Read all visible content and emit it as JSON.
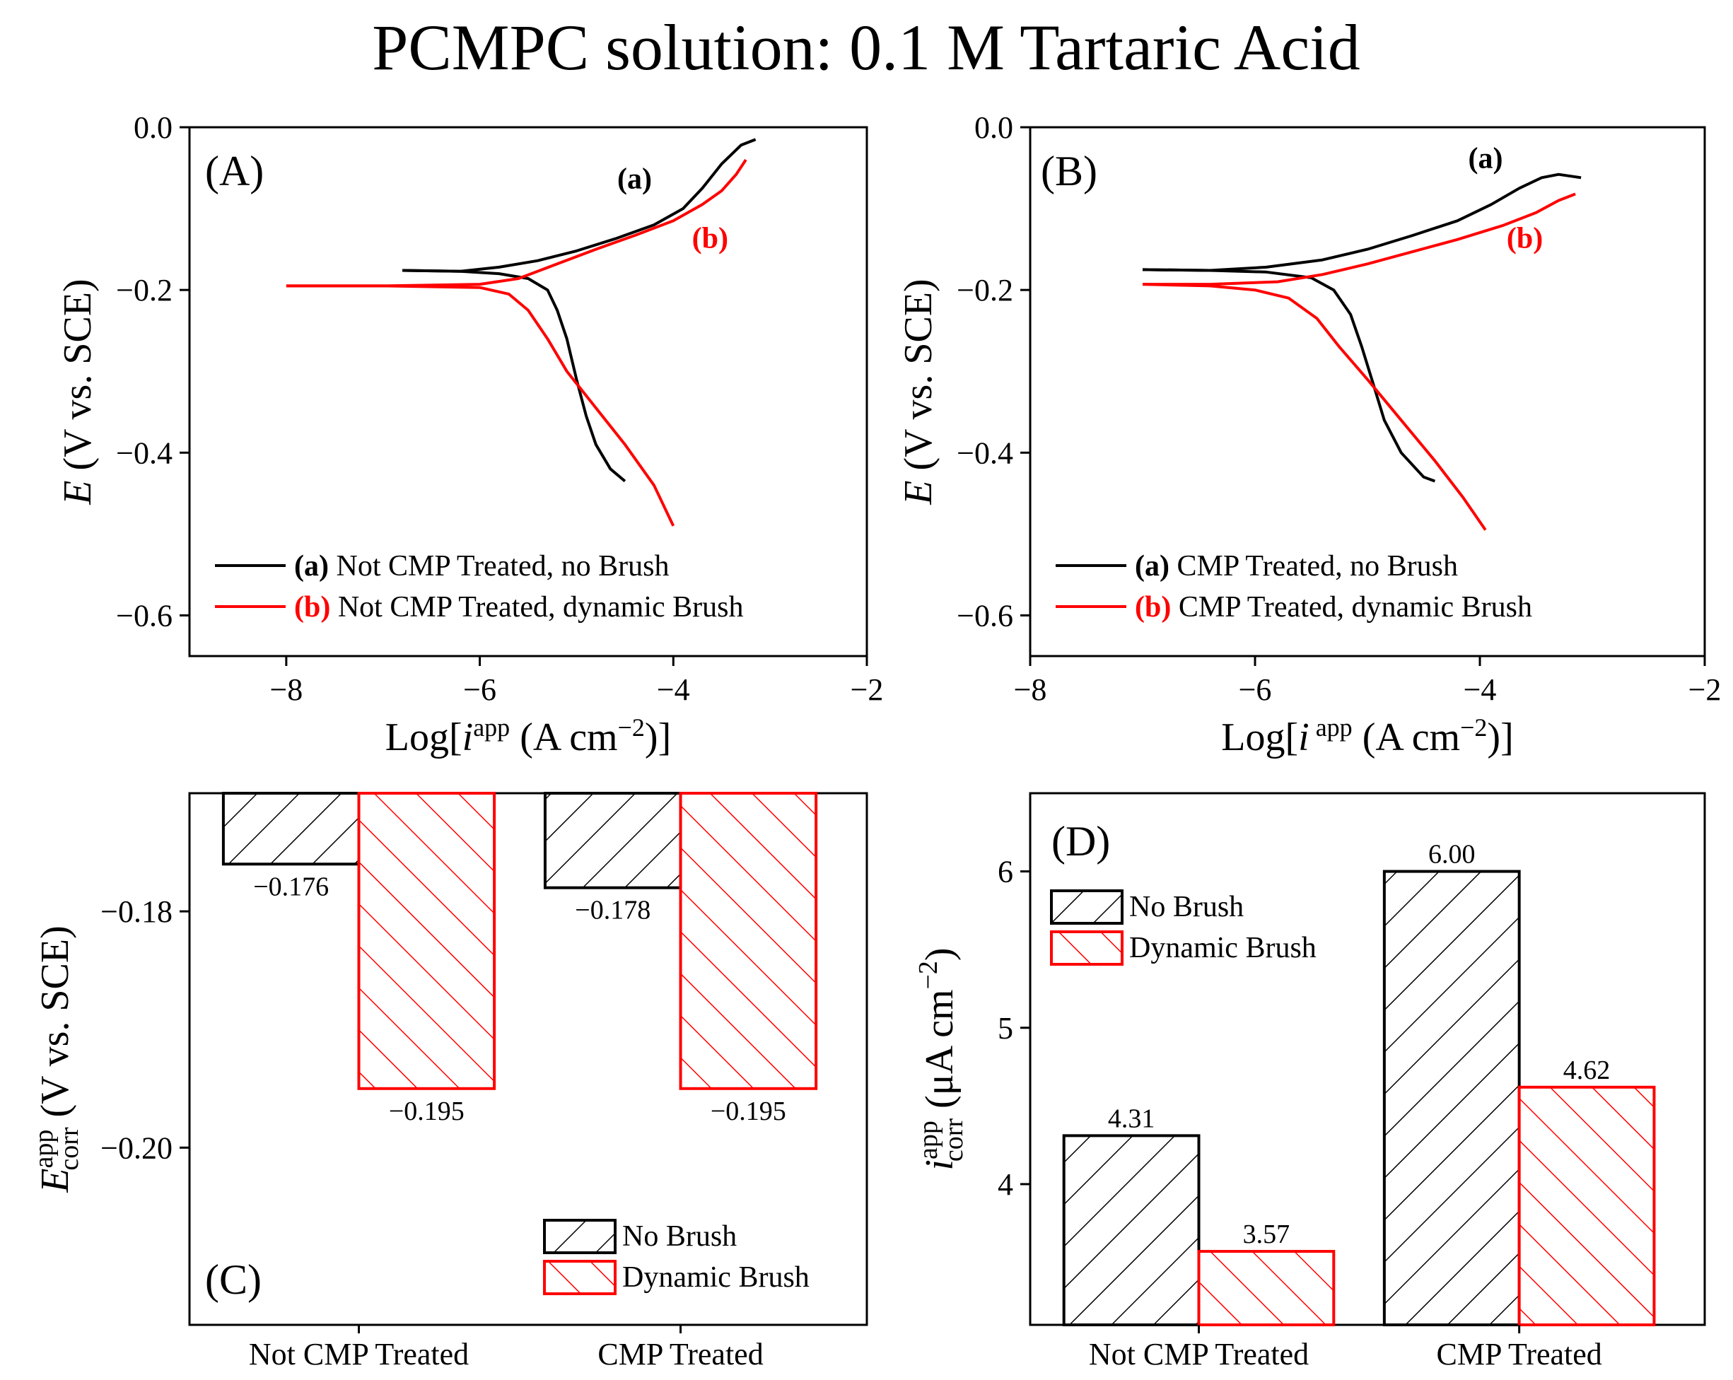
{
  "title": "PCMPC solution: 0.1 M Tartaric Acid",
  "colors": {
    "black": "#000000",
    "red": "#ff0000"
  },
  "chart_data": [
    {
      "panel": "(A)",
      "type": "line",
      "xlabel": {
        "prefix": "Log[",
        "var": "i",
        "sup": "app",
        "units": " (A cm",
        "unitsup": "−2",
        "suffix": ")]"
      },
      "ylabel": {
        "var": "E",
        "rest": " (V vs. SCE)"
      },
      "xlim": [
        -9,
        -2
      ],
      "ylim": [
        -0.65,
        0.0
      ],
      "xticks": [
        -8,
        -6,
        -4,
        -2
      ],
      "xtick_labels": [
        "−8",
        "−6",
        "−4",
        "−2"
      ],
      "yticks": [
        0.0,
        -0.2,
        -0.4,
        -0.6
      ],
      "ytick_labels": [
        "0.0",
        "−0.2",
        "−0.4",
        "−0.6"
      ],
      "curve_labels": [
        {
          "text": "(a)",
          "color": "#000000",
          "x": -4.4,
          "y": -0.075
        },
        {
          "text": "(b)",
          "color": "#ff0000",
          "x": -3.62,
          "y": -0.148
        }
      ],
      "legend": [
        {
          "tag": "(a)",
          "text": " Not CMP Treated, no Brush",
          "color": "#000000"
        },
        {
          "tag": "(b)",
          "text": " Not CMP Treated, dynamic Brush",
          "color": "#ff0000"
        }
      ],
      "series": [
        {
          "name": "(a) Not CMP Treated, no Brush",
          "color": "#000000",
          "points": [
            [
              -6.8,
              -0.176
            ],
            [
              -6.2,
              -0.177
            ],
            [
              -5.8,
              -0.172
            ],
            [
              -5.4,
              -0.164
            ],
            [
              -5.0,
              -0.152
            ],
            [
              -4.6,
              -0.137
            ],
            [
              -4.2,
              -0.12
            ],
            [
              -3.9,
              -0.1
            ],
            [
              -3.7,
              -0.075
            ],
            [
              -3.5,
              -0.045
            ],
            [
              -3.3,
              -0.022
            ],
            [
              -3.15,
              -0.015
            ]
          ],
          "cathodic": [
            [
              -6.8,
              -0.176
            ],
            [
              -6.2,
              -0.177
            ],
            [
              -5.8,
              -0.18
            ],
            [
              -5.5,
              -0.186
            ],
            [
              -5.3,
              -0.2
            ],
            [
              -5.2,
              -0.225
            ],
            [
              -5.1,
              -0.26
            ],
            [
              -5.0,
              -0.31
            ],
            [
              -4.9,
              -0.355
            ],
            [
              -4.8,
              -0.39
            ],
            [
              -4.65,
              -0.42
            ],
            [
              -4.5,
              -0.435
            ]
          ]
        },
        {
          "name": "(b) Not CMP Treated, dynamic Brush",
          "color": "#ff0000",
          "points": [
            [
              -8.0,
              -0.195
            ],
            [
              -7.0,
              -0.195
            ],
            [
              -6.0,
              -0.193
            ],
            [
              -5.6,
              -0.186
            ],
            [
              -5.2,
              -0.168
            ],
            [
              -4.8,
              -0.15
            ],
            [
              -4.4,
              -0.133
            ],
            [
              -4.0,
              -0.115
            ],
            [
              -3.7,
              -0.095
            ],
            [
              -3.5,
              -0.078
            ],
            [
              -3.35,
              -0.058
            ],
            [
              -3.25,
              -0.04
            ]
          ],
          "cathodic": [
            [
              -8.0,
              -0.195
            ],
            [
              -7.0,
              -0.195
            ],
            [
              -6.0,
              -0.197
            ],
            [
              -5.7,
              -0.205
            ],
            [
              -5.5,
              -0.225
            ],
            [
              -5.3,
              -0.26
            ],
            [
              -5.1,
              -0.3
            ],
            [
              -4.8,
              -0.345
            ],
            [
              -4.5,
              -0.39
            ],
            [
              -4.2,
              -0.44
            ],
            [
              -4.0,
              -0.49
            ]
          ]
        }
      ]
    },
    {
      "panel": "(B)",
      "type": "line",
      "xlabel": {
        "prefix": "Log[",
        "var": "i",
        "sup": " app",
        "units": " (A cm",
        "unitsup": "−2",
        "suffix": ")]"
      },
      "ylabel": {
        "var": "E",
        "rest": " (V vs. SCE)"
      },
      "xlim": [
        -8,
        -2
      ],
      "ylim": [
        -0.65,
        0.0
      ],
      "xticks": [
        -8,
        -6,
        -4,
        -2
      ],
      "xtick_labels": [
        "−8",
        "−6",
        "−4",
        "−2"
      ],
      "yticks": [
        0.0,
        -0.2,
        -0.4,
        -0.6
      ],
      "ytick_labels": [
        "0.0",
        "−0.2",
        "−0.4",
        "−0.6"
      ],
      "curve_labels": [
        {
          "text": "(a)",
          "color": "#000000",
          "x": -3.95,
          "y": -0.05
        },
        {
          "text": "(b)",
          "color": "#ff0000",
          "x": -3.6,
          "y": -0.148
        }
      ],
      "legend": [
        {
          "tag": "(a)",
          "text": " CMP Treated, no Brush",
          "color": "#000000"
        },
        {
          "tag": "(b)",
          "text": " CMP Treated, dynamic Brush",
          "color": "#ff0000"
        }
      ],
      "series": [
        {
          "name": "(a) CMP Treated, no Brush",
          "color": "#000000",
          "points": [
            [
              -7.0,
              -0.175
            ],
            [
              -6.4,
              -0.176
            ],
            [
              -5.9,
              -0.172
            ],
            [
              -5.4,
              -0.163
            ],
            [
              -5.0,
              -0.15
            ],
            [
              -4.6,
              -0.133
            ],
            [
              -4.2,
              -0.115
            ],
            [
              -3.9,
              -0.095
            ],
            [
              -3.65,
              -0.075
            ],
            [
              -3.45,
              -0.062
            ],
            [
              -3.3,
              -0.058
            ],
            [
              -3.1,
              -0.062
            ]
          ],
          "cathodic": [
            [
              -7.0,
              -0.175
            ],
            [
              -6.4,
              -0.176
            ],
            [
              -5.9,
              -0.178
            ],
            [
              -5.5,
              -0.185
            ],
            [
              -5.3,
              -0.2
            ],
            [
              -5.15,
              -0.23
            ],
            [
              -5.05,
              -0.27
            ],
            [
              -4.95,
              -0.315
            ],
            [
              -4.85,
              -0.36
            ],
            [
              -4.7,
              -0.4
            ],
            [
              -4.5,
              -0.43
            ],
            [
              -4.4,
              -0.435
            ]
          ]
        },
        {
          "name": "(b) CMP Treated, dynamic Brush",
          "color": "#ff0000",
          "points": [
            [
              -7.0,
              -0.193
            ],
            [
              -6.4,
              -0.193
            ],
            [
              -5.8,
              -0.19
            ],
            [
              -5.4,
              -0.181
            ],
            [
              -5.0,
              -0.168
            ],
            [
              -4.6,
              -0.153
            ],
            [
              -4.2,
              -0.138
            ],
            [
              -3.8,
              -0.121
            ],
            [
              -3.5,
              -0.105
            ],
            [
              -3.3,
              -0.09
            ],
            [
              -3.15,
              -0.082
            ]
          ],
          "cathodic": [
            [
              -7.0,
              -0.193
            ],
            [
              -6.4,
              -0.195
            ],
            [
              -6.0,
              -0.2
            ],
            [
              -5.7,
              -0.21
            ],
            [
              -5.45,
              -0.235
            ],
            [
              -5.25,
              -0.27
            ],
            [
              -5.0,
              -0.31
            ],
            [
              -4.7,
              -0.36
            ],
            [
              -4.4,
              -0.41
            ],
            [
              -4.15,
              -0.455
            ],
            [
              -3.95,
              -0.495
            ]
          ]
        }
      ]
    },
    {
      "panel": "(C)",
      "type": "bar",
      "categories": [
        "Not CMP Treated",
        "CMP Treated"
      ],
      "ylabel": {
        "var": "E",
        "sup": "app",
        "sub": "corr",
        "rest": " (V vs. SCE)"
      },
      "ylim": [
        -0.215,
        -0.17
      ],
      "yticks": [
        -0.18,
        -0.2
      ],
      "ytick_labels": [
        "−0.18",
        "−0.20"
      ],
      "bar_base": -0.17,
      "series": [
        {
          "name": "No Brush",
          "color": "#000000",
          "hatch": "forward",
          "values": [
            -0.176,
            -0.178
          ],
          "labels": [
            "−0.176",
            "−0.178"
          ]
        },
        {
          "name": "Dynamic Brush",
          "color": "#ff0000",
          "hatch": "back",
          "values": [
            -0.195,
            -0.195
          ],
          "labels": [
            "−0.195",
            "−0.195"
          ]
        }
      ],
      "legend_position": "bottom-right"
    },
    {
      "panel": "(D)",
      "type": "bar",
      "categories": [
        "Not CMP Treated",
        "CMP Treated"
      ],
      "ylabel": {
        "var": "i",
        "sup": "app",
        "sub": "corr",
        "rest": " (μA cm",
        "restsup": "−2",
        "tail": ")"
      },
      "ylim": [
        3.1,
        6.5
      ],
      "yticks": [
        4,
        5,
        6
      ],
      "ytick_labels": [
        "4",
        "5",
        "6"
      ],
      "series": [
        {
          "name": "No Brush",
          "color": "#000000",
          "hatch": "forward",
          "values": [
            4.31,
            6.0
          ],
          "labels": [
            "4.31",
            "6.00"
          ]
        },
        {
          "name": "Dynamic Brush",
          "color": "#ff0000",
          "hatch": "back",
          "values": [
            3.57,
            4.62
          ],
          "labels": [
            "3.57",
            "4.62"
          ]
        }
      ],
      "legend_position": "top-left"
    }
  ]
}
